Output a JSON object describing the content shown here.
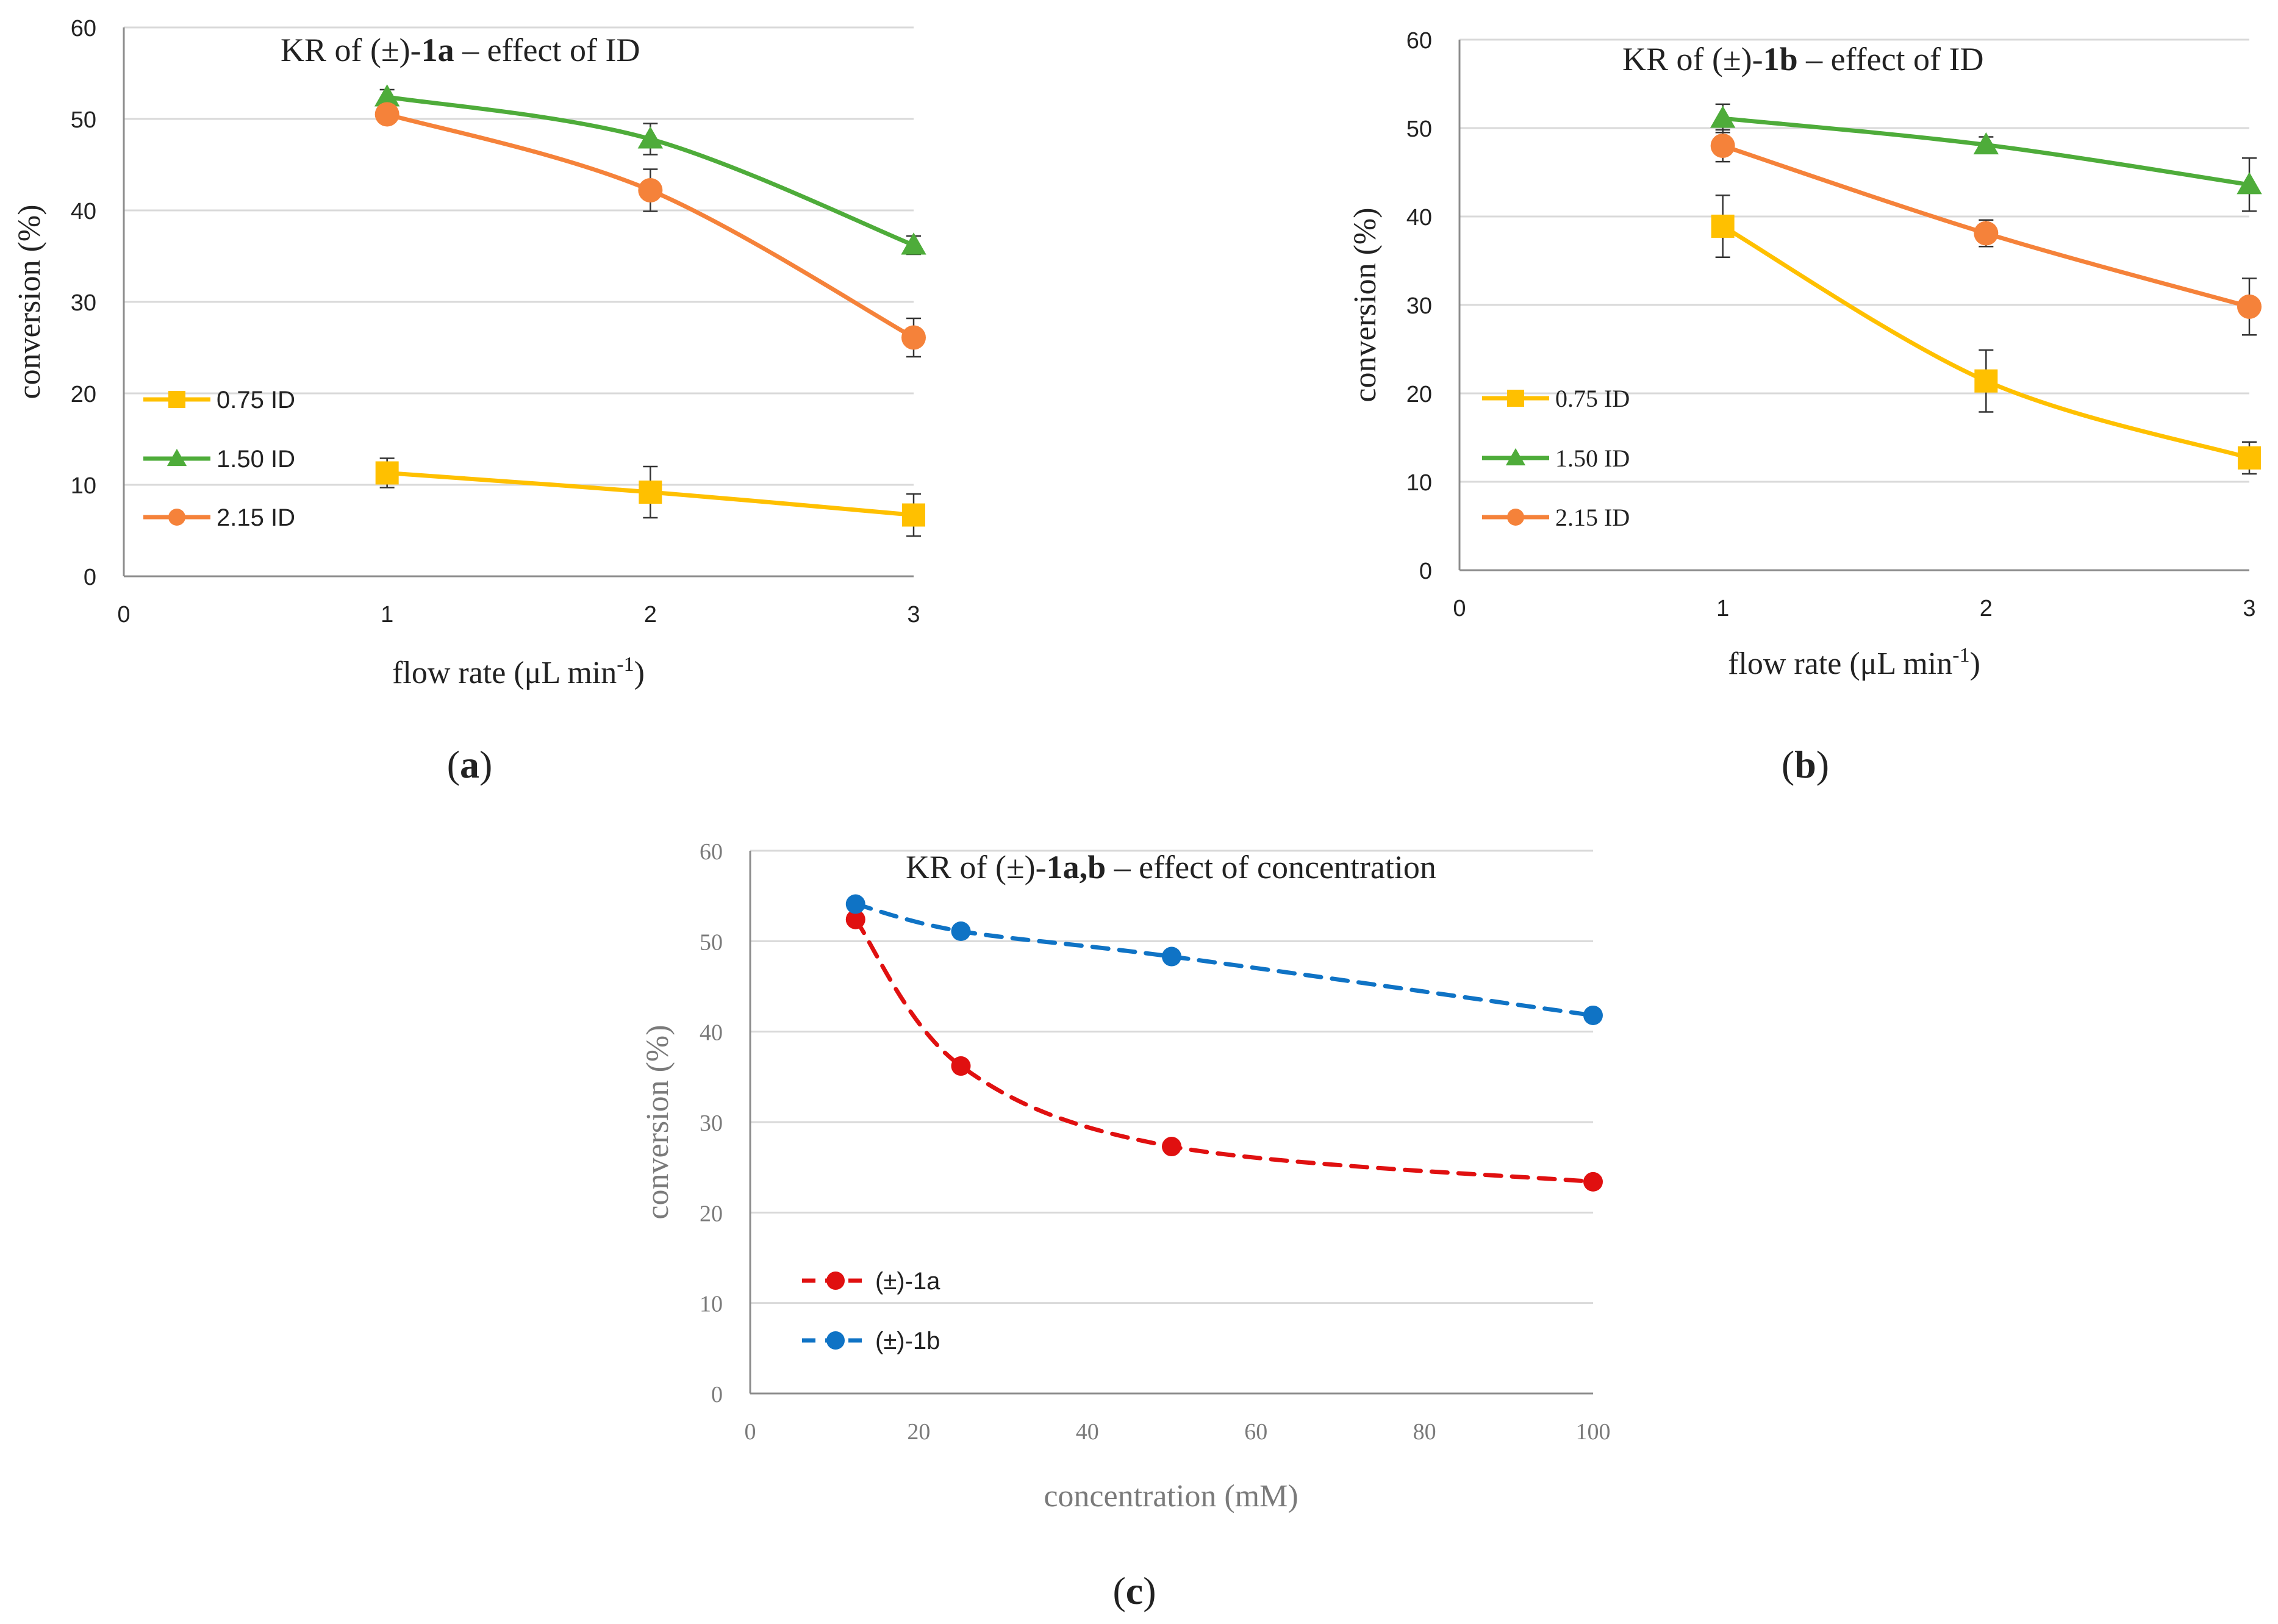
{
  "colors": {
    "yellow": "#FFC000",
    "green": "#4EAC3A",
    "orange": "#F5823A",
    "red": "#E01010",
    "blue": "#0F73C5",
    "grid": "#D9D9D9",
    "axis": "#8C8C8C",
    "text": "#222222",
    "light_text": "#7a7a7a"
  },
  "chart_data": [
    {
      "id": "a",
      "type": "line",
      "title_parts": [
        "KR of (±)-",
        "1a",
        " – effect of ID"
      ],
      "panel_label": [
        "(",
        "a",
        ")"
      ],
      "xlabel": "flow rate (μL min",
      "xlabel_sup": "-1",
      "xlabel_close": ")",
      "ylabel": "conversion (%)",
      "xlim": [
        0,
        3
      ],
      "ylim": [
        0,
        60
      ],
      "xticks": [
        "0",
        "1",
        "2",
        "3"
      ],
      "yticks": [
        "0",
        "10",
        "20",
        "30",
        "40",
        "50",
        "60"
      ],
      "legend": "lower-left",
      "series": [
        {
          "name": "0.75 ID",
          "color": "yellow",
          "marker": "square",
          "x": [
            1,
            2,
            3
          ],
          "y": [
            11.3,
            9.2,
            6.7
          ],
          "err": [
            1.6,
            2.8,
            2.3
          ]
        },
        {
          "name": "1.50 ID",
          "color": "green",
          "marker": "triangle",
          "x": [
            1,
            2,
            3
          ],
          "y": [
            52.4,
            47.8,
            36.2
          ],
          "err": [
            0.8,
            1.7,
            1.0
          ]
        },
        {
          "name": "2.15 ID",
          "color": "orange",
          "marker": "circle",
          "x": [
            1,
            2,
            3
          ],
          "y": [
            50.5,
            42.2,
            26.1
          ],
          "err": [
            0.8,
            2.3,
            2.1
          ]
        }
      ]
    },
    {
      "id": "b",
      "type": "line",
      "title_parts": [
        "KR of (±)-",
        "1b",
        " – effect of ID"
      ],
      "panel_label": [
        "(",
        "b",
        ")"
      ],
      "xlabel": "flow rate (μL min",
      "xlabel_sup": "-1",
      "xlabel_close": ")",
      "ylabel": "conversion (%)",
      "xlim": [
        0,
        3
      ],
      "ylim": [
        0,
        60
      ],
      "xticks": [
        "0",
        "1",
        "2",
        "3"
      ],
      "yticks": [
        "0",
        "10",
        "20",
        "30",
        "40",
        "50",
        "60"
      ],
      "legend": "lower-left",
      "series": [
        {
          "name": "0.75 ID",
          "color": "yellow",
          "marker": "square",
          "x": [
            1,
            2,
            3
          ],
          "y": [
            38.9,
            21.4,
            12.7
          ],
          "err": [
            3.5,
            3.5,
            1.8
          ]
        },
        {
          "name": "1.50 ID",
          "color": "green",
          "marker": "triangle",
          "x": [
            1,
            2,
            3
          ],
          "y": [
            51.1,
            48.1,
            43.6
          ],
          "err": [
            1.6,
            0.9,
            3.0
          ]
        },
        {
          "name": "2.15 ID",
          "color": "orange",
          "marker": "circle",
          "x": [
            1,
            2,
            3
          ],
          "y": [
            48.0,
            38.1,
            29.8
          ],
          "err": [
            1.8,
            1.5,
            3.2
          ]
        }
      ]
    },
    {
      "id": "c",
      "type": "scatter",
      "title_parts": [
        "KR of (±)-",
        "1a,b",
        " – effect of concentration"
      ],
      "panel_label": [
        "(",
        "c",
        ")"
      ],
      "xlabel": "concentration (mM)",
      "ylabel": "conversion (%)",
      "xlim": [
        0,
        100
      ],
      "ylim": [
        0,
        60
      ],
      "xticks": [
        "0",
        "20",
        "40",
        "60",
        "80",
        "100"
      ],
      "yticks": [
        "0",
        "10",
        "20",
        "30",
        "40",
        "50",
        "60"
      ],
      "legend": "lower-left",
      "series": [
        {
          "name": "(±)-1a",
          "color": "red",
          "marker": "circle",
          "dashed": true,
          "x": [
            12.5,
            25,
            50,
            100
          ],
          "y": [
            52.4,
            36.2,
            27.3,
            23.4
          ]
        },
        {
          "name": "(±)-1b",
          "color": "blue",
          "marker": "circle",
          "dashed": true,
          "x": [
            12.5,
            25,
            50,
            100
          ],
          "y": [
            54.1,
            51.1,
            48.3,
            41.8
          ]
        }
      ]
    }
  ]
}
